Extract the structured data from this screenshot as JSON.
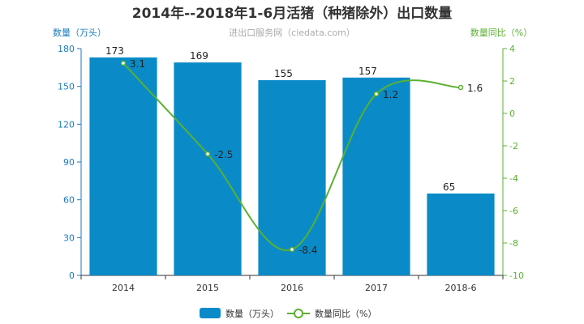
{
  "chart_data": {
    "type": "bar",
    "title": "2014年--2018年1-6月活猪（种猪除外）出口数量",
    "subtitle": "进出口服务网（ciedata.com）",
    "categories": [
      "2014",
      "2015",
      "2016",
      "2017",
      "2018-6"
    ],
    "series": [
      {
        "name": "数量（万头）",
        "type": "bar",
        "axis": "left",
        "color": "#0a8bc8",
        "values": [
          173,
          169,
          155,
          157,
          65
        ]
      },
      {
        "name": "数量同比（%）",
        "type": "line",
        "axis": "right",
        "color": "#5bb030",
        "values": [
          3.1,
          -2.5,
          -8.4,
          1.2,
          1.6
        ]
      }
    ],
    "y_left": {
      "label": "数量（万头）",
      "ylim": [
        0,
        180
      ],
      "ticks": [
        0,
        30,
        60,
        90,
        120,
        150,
        180
      ]
    },
    "y_right": {
      "label": "数量同比（%）",
      "ylim": [
        -10,
        4
      ],
      "ticks": [
        4,
        2,
        0,
        -2,
        -4,
        -6,
        -8,
        -10
      ]
    },
    "legend_position": "bottom-center",
    "grid": false
  }
}
